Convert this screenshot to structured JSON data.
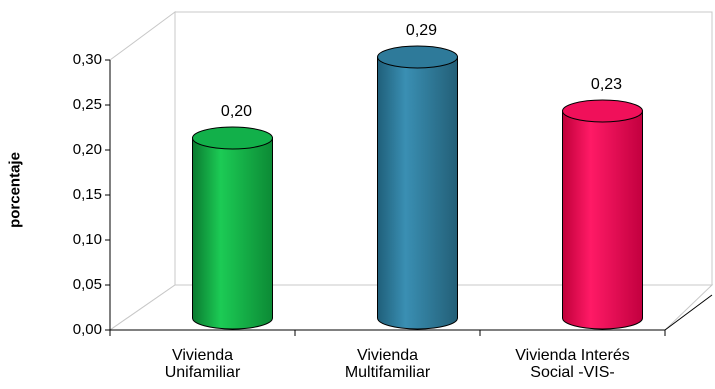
{
  "chart_data": {
    "type": "bar",
    "style": "3d-cylinder",
    "ylabel": "porcentaje",
    "ylim": [
      0,
      0.3
    ],
    "yticks": [
      "0,00",
      "0,05",
      "0,10",
      "0,15",
      "0,20",
      "0,25",
      "0,30"
    ],
    "categories": [
      "Vivienda Unifamiliar",
      "Vivienda Multifamiliar",
      "Vivienda Interés Social -VIS-"
    ],
    "category_lines": [
      [
        "Vivienda",
        "Unifamiliar"
      ],
      [
        "Vivienda",
        "Multifamiliar"
      ],
      [
        "Vivienda Interés",
        "Social -VIS-"
      ]
    ],
    "values": [
      0.2,
      0.29,
      0.23
    ],
    "data_labels": [
      "0,20",
      "0,29",
      "0,23"
    ],
    "colors": [
      "#12b04a",
      "#2e7a9a",
      "#f0105a"
    ],
    "grid": false
  }
}
